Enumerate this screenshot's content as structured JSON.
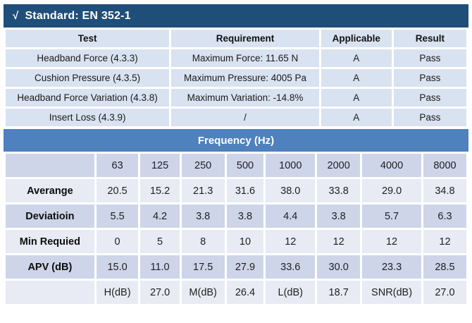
{
  "title_bar": {
    "check": "√",
    "title": "Standard: EN 352-1"
  },
  "requirements_table": {
    "headers": [
      "Test",
      "Requirement",
      "Applicable",
      "Result"
    ],
    "rows": [
      [
        "Headband Force (4.3.3)",
        "Maximum Force: 11.65 N",
        "A",
        "Pass"
      ],
      [
        "Cushion Pressure (4.3.5)",
        "Maximum Pressure: 4005 Pa",
        "A",
        "Pass"
      ],
      [
        "Headband Force Variation (4.3.8)",
        "Maximum Variation: -14.8%",
        "A",
        "Pass"
      ],
      [
        "Insert Loss (4.3.9)",
        "/",
        "A",
        "Pass"
      ]
    ]
  },
  "frequency_section": {
    "header": "Frequency (Hz)",
    "columns": [
      "63",
      "125",
      "250",
      "500",
      "1000",
      "2000",
      "4000",
      "8000"
    ],
    "rows": [
      {
        "label": "Averange",
        "values": [
          "20.5",
          "15.2",
          "21.3",
          "31.6",
          "38.0",
          "33.8",
          "29.0",
          "34.8"
        ]
      },
      {
        "label": "Deviatioin",
        "values": [
          "5.5",
          "4.2",
          "3.8",
          "3.8",
          "4.4",
          "3.8",
          "5.7",
          "6.3"
        ]
      },
      {
        "label": "Min Requied",
        "values": [
          "0",
          "5",
          "8",
          "10",
          "12",
          "12",
          "12",
          "12"
        ]
      },
      {
        "label": "APV (dB)",
        "values": [
          "15.0",
          "11.0",
          "17.5",
          "27.9",
          "33.6",
          "30.0",
          "23.3",
          "28.5"
        ]
      }
    ],
    "summary_row": [
      "H(dB)",
      "27.0",
      "M(dB)",
      "26.4",
      "L(dB)",
      "18.7",
      "SNR(dB)",
      "27.0"
    ]
  },
  "colors": {
    "title_bar_bg": "#1F4E79",
    "frequency_header_bg": "#4E81BD",
    "requirement_cell_bg": "#D9E2F0",
    "freq_row_dark": "#CED5E9",
    "freq_row_light": "#E9EBF4",
    "text": "#1a1a1a"
  }
}
